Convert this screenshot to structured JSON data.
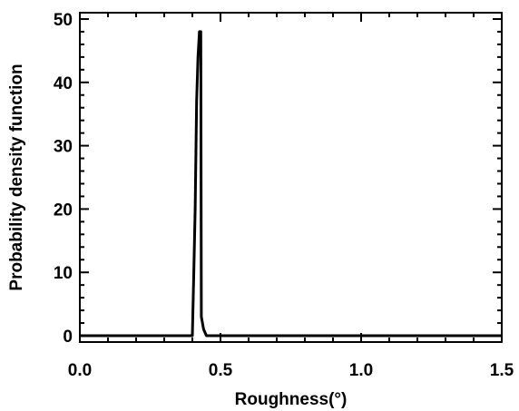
{
  "chart_data": {
    "type": "line",
    "xlabel": "Roughness(°)",
    "ylabel": "Probability density function",
    "xlim": [
      0,
      1.5
    ],
    "ylim": [
      -1,
      51
    ],
    "grid": false,
    "x_ticks": [
      "0.0",
      "0.5",
      "1.0",
      "1.5"
    ],
    "y_ticks": [
      "0",
      "10",
      "20",
      "30",
      "40",
      "50"
    ],
    "series": [
      {
        "x": [
          0.0,
          0.35,
          0.4,
          0.405,
          0.41,
          0.415,
          0.42,
          0.425,
          0.43,
          0.432,
          0.44,
          0.45,
          0.5,
          1.5
        ],
        "y": [
          0,
          0,
          0,
          10,
          20,
          37,
          44,
          48,
          48,
          3,
          1,
          0,
          0,
          0
        ]
      }
    ],
    "line_color": "#000000"
  }
}
